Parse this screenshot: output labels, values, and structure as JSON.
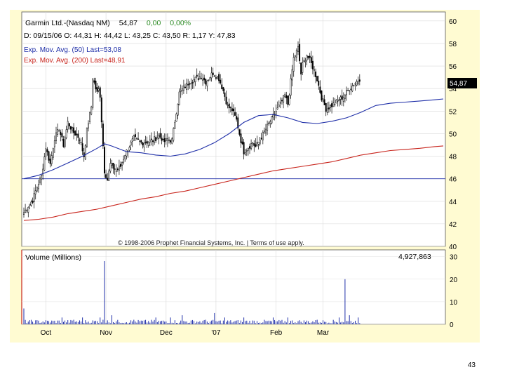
{
  "page": {
    "number": "43"
  },
  "chart_data": {
    "type": "candlestick",
    "header": {
      "line1": {
        "name": "Garmin Ltd.-(Nasdaq NM)",
        "last": "54,87",
        "change": "0,00",
        "change_pct": "0,00%"
      },
      "line2": "D: 09/15/06  O: 44,31  H: 44,42  L: 43,25  C: 43,50  R: 1,17  Y: 47,83"
    },
    "moving_averages": [
      {
        "label": "Exp. Mov. Avg. (50) Last=53,08",
        "color": "#1f2fa8",
        "values": [
          [
            0,
            46.0
          ],
          [
            10,
            46.3
          ],
          [
            20,
            46.8
          ],
          [
            30,
            47.4
          ],
          [
            40,
            48.0
          ],
          [
            50,
            48.7
          ],
          [
            55,
            49.1
          ],
          [
            60,
            48.9
          ],
          [
            70,
            48.4
          ],
          [
            80,
            48.3
          ],
          [
            90,
            48.1
          ],
          [
            100,
            48.0
          ],
          [
            110,
            48.2
          ],
          [
            120,
            48.6
          ],
          [
            130,
            49.2
          ],
          [
            140,
            50.0
          ],
          [
            150,
            51.0
          ],
          [
            160,
            51.6
          ],
          [
            170,
            51.7
          ],
          [
            180,
            51.4
          ],
          [
            190,
            51.0
          ],
          [
            200,
            50.9
          ],
          [
            210,
            51.1
          ],
          [
            220,
            51.4
          ],
          [
            230,
            51.9
          ],
          [
            240,
            52.5
          ],
          [
            250,
            52.7
          ],
          [
            260,
            52.8
          ],
          [
            270,
            52.9
          ],
          [
            280,
            53.0
          ],
          [
            286,
            53.08
          ]
        ]
      },
      {
        "label": "Exp. Mov. Avg. (200) Last=48,91",
        "color": "#c8241c",
        "values": [
          [
            0,
            42.3
          ],
          [
            10,
            42.4
          ],
          [
            20,
            42.6
          ],
          [
            30,
            42.9
          ],
          [
            40,
            43.1
          ],
          [
            50,
            43.3
          ],
          [
            60,
            43.6
          ],
          [
            70,
            43.9
          ],
          [
            80,
            44.2
          ],
          [
            90,
            44.4
          ],
          [
            100,
            44.7
          ],
          [
            110,
            44.9
          ],
          [
            120,
            45.2
          ],
          [
            130,
            45.5
          ],
          [
            140,
            45.8
          ],
          [
            150,
            46.1
          ],
          [
            160,
            46.4
          ],
          [
            170,
            46.7
          ],
          [
            180,
            46.9
          ],
          [
            190,
            47.1
          ],
          [
            200,
            47.3
          ],
          [
            210,
            47.5
          ],
          [
            220,
            47.8
          ],
          [
            230,
            48.1
          ],
          [
            240,
            48.3
          ],
          [
            250,
            48.5
          ],
          [
            260,
            48.6
          ],
          [
            270,
            48.7
          ],
          [
            280,
            48.85
          ],
          [
            286,
            48.91
          ]
        ]
      }
    ],
    "price_axis": {
      "ticks": [
        "40",
        "42",
        "44",
        "46",
        "48",
        "50",
        "52",
        "54",
        "56",
        "58",
        "60"
      ],
      "ylim": [
        40,
        60.8
      ],
      "current_price_label": "54,87",
      "current_price": 54.87,
      "reference_level": 46
    },
    "volume_panel": {
      "title": "Volume (Millions)",
      "last_volume": "4,927,863",
      "ticks": [
        "0",
        "10",
        "20",
        "30"
      ],
      "ylim": [
        0,
        33
      ],
      "spikes": [
        [
          0,
          7
        ],
        [
          26,
          3
        ],
        [
          34,
          2
        ],
        [
          40,
          3
        ],
        [
          52,
          3
        ],
        [
          54,
          2
        ],
        [
          55,
          28
        ],
        [
          60,
          4
        ],
        [
          75,
          2
        ],
        [
          90,
          3
        ],
        [
          100,
          3
        ],
        [
          108,
          4
        ],
        [
          124,
          2
        ],
        [
          130,
          5
        ],
        [
          137,
          3
        ],
        [
          150,
          3
        ],
        [
          170,
          3
        ],
        [
          180,
          3
        ],
        [
          200,
          2
        ],
        [
          215,
          3
        ],
        [
          219,
          20
        ],
        [
          222,
          4
        ],
        [
          228,
          3
        ],
        [
          240,
          4
        ],
        [
          255,
          3
        ],
        [
          265,
          2
        ],
        [
          275,
          4
        ]
      ]
    },
    "x_axis": {
      "labels": [
        "Oct",
        "Nov",
        "Dec",
        "'07",
        "Feb",
        "Mar"
      ],
      "positions": [
        15,
        56,
        97,
        131,
        172,
        204
      ],
      "xlim": [
        0,
        286
      ]
    },
    "copyright": "© 1998-2006 Prophet Financial Systems, Inc. | Terms of use apply.",
    "price_path": [
      [
        0,
        43.0
      ],
      [
        3,
        43.6
      ],
      [
        6,
        44.1
      ],
      [
        9,
        45.3
      ],
      [
        12,
        46.2
      ],
      [
        15,
        48.8
      ],
      [
        18,
        47.3
      ],
      [
        21,
        49.6
      ],
      [
        24,
        50.4
      ],
      [
        27,
        49.0
      ],
      [
        30,
        51.0
      ],
      [
        34,
        50.1
      ],
      [
        38,
        49.6
      ],
      [
        41,
        48.0
      ],
      [
        43,
        50.3
      ],
      [
        46,
        52.4
      ],
      [
        47,
        55.0
      ],
      [
        49,
        54.0
      ],
      [
        50,
        53.6
      ],
      [
        51,
        53.9
      ],
      [
        52,
        53.4
      ],
      [
        55,
        46.7
      ],
      [
        57,
        45.9
      ],
      [
        59,
        47.3
      ],
      [
        63,
        46.7
      ],
      [
        66,
        47.1
      ],
      [
        69,
        48.2
      ],
      [
        72,
        48.9
      ],
      [
        75,
        49.6
      ],
      [
        80,
        49.2
      ],
      [
        85,
        49.3
      ],
      [
        88,
        49.4
      ],
      [
        92,
        49.8
      ],
      [
        94,
        49.6
      ],
      [
        95,
        49.2
      ],
      [
        98,
        49.5
      ],
      [
        101,
        49.4
      ],
      [
        104,
        52.0
      ],
      [
        106,
        53.6
      ],
      [
        110,
        54.2
      ],
      [
        113,
        54.6
      ],
      [
        118,
        54.9
      ],
      [
        121,
        55.1
      ],
      [
        124,
        54.6
      ],
      [
        129,
        55.4
      ],
      [
        133,
        54.9
      ],
      [
        136,
        53.8
      ],
      [
        139,
        52.4
      ],
      [
        142,
        52.1
      ],
      [
        145,
        51.2
      ],
      [
        148,
        49.4
      ],
      [
        150,
        48.4
      ],
      [
        153,
        48.8
      ],
      [
        156,
        49.2
      ],
      [
        158,
        48.8
      ],
      [
        162,
        49.7
      ],
      [
        168,
        51.1
      ],
      [
        172,
        52.0
      ],
      [
        175,
        52.6
      ],
      [
        178,
        53.4
      ],
      [
        180,
        52.6
      ],
      [
        184,
        56.7
      ],
      [
        187,
        57.6
      ],
      [
        189,
        55.3
      ],
      [
        190,
        56.1
      ],
      [
        193,
        57.0
      ],
      [
        195,
        56.5
      ],
      [
        198,
        55.6
      ],
      [
        200,
        54.8
      ],
      [
        203,
        53.2
      ],
      [
        206,
        52.2
      ],
      [
        209,
        52.4
      ],
      [
        214,
        52.9
      ],
      [
        218,
        53.3
      ],
      [
        222,
        54.0
      ],
      [
        226,
        54.5
      ],
      [
        229,
        54.87
      ]
    ]
  }
}
